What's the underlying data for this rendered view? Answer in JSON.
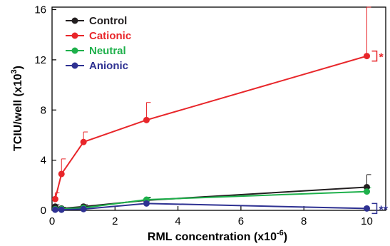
{
  "chart_data": {
    "type": "line",
    "xlabel": "RML concentration (x10",
    "xlabel_sup": "-6",
    "xlabel_end": ")",
    "ylabel": "TCIU/well (x10",
    "ylabel_sup": "3",
    "ylabel_end": ")",
    "xlim": [
      0,
      10.6
    ],
    "ylim": [
      0,
      16.2
    ],
    "xticks": [
      0,
      2,
      4,
      6,
      8,
      10
    ],
    "yticks": [
      0,
      4,
      8,
      12,
      16
    ],
    "legend_position": "top-left",
    "series": [
      {
        "name": "Control",
        "color": "#231f20",
        "x": [
          0.1,
          0.3,
          1,
          3,
          10
        ],
        "y": [
          0.3,
          0.15,
          0.3,
          0.8,
          1.85
        ],
        "err": [
          0.15,
          0.1,
          0.15,
          0.2,
          1.0
        ]
      },
      {
        "name": "Cationic",
        "color": "#e8262a",
        "x": [
          0.1,
          0.3,
          1,
          3,
          10
        ],
        "y": [
          0.9,
          2.9,
          5.45,
          7.2,
          12.3
        ],
        "err": [
          0.5,
          1.2,
          0.8,
          1.4,
          3.9
        ]
      },
      {
        "name": "Neutral",
        "color": "#1eb04b",
        "x": [
          0.1,
          0.3,
          1,
          3,
          10
        ],
        "y": [
          0.1,
          0.12,
          0.2,
          0.85,
          1.5
        ],
        "err": [
          0.1,
          0.08,
          0.1,
          0.2,
          0.3
        ]
      },
      {
        "name": "Anionic",
        "color": "#2e3192",
        "x": [
          0.1,
          0.3,
          1,
          3,
          10
        ],
        "y": [
          0.05,
          0.05,
          0.1,
          0.55,
          0.15
        ],
        "err": [
          0,
          0,
          0,
          0,
          0
        ]
      }
    ],
    "annotations": [
      {
        "text": "*",
        "series": "Cationic",
        "color": "#e8262a"
      },
      {
        "text": "**",
        "series": "Anionic",
        "color": "#2e3192"
      }
    ]
  }
}
